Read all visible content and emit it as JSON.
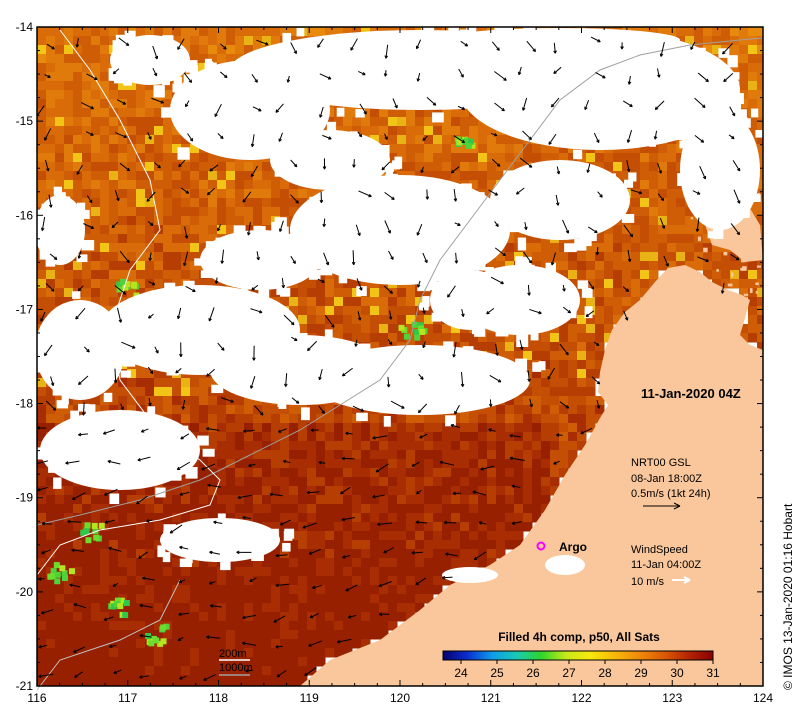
{
  "map": {
    "date_label": "11-Jan-2020 04Z",
    "credit": "© IMOS 13-Jan-2020 01:16 Hobart",
    "colors": {
      "land": "#f9c79b",
      "cloud": "#ffffff",
      "frame": "#000000",
      "argo": "#ff00ff",
      "depth_contour": "#a0a0a0",
      "shallow_contour": "#ffffff"
    },
    "longitude_ticks": [
      "116",
      "117",
      "118",
      "119",
      "120",
      "121",
      "122",
      "123",
      "124"
    ],
    "latitude_ticks": [
      "-14",
      "-15",
      "-16",
      "-17",
      "-18",
      "-19",
      "-20",
      "-21"
    ],
    "lon_range": [
      116,
      124
    ],
    "lat_range": [
      -14,
      -21
    ]
  },
  "current_legend": {
    "title": "NRT00 GSL",
    "time": "08-Jan 18:00Z",
    "scale": "0.5m/s (1kt 24h)"
  },
  "wind_legend": {
    "title": "WindSpeed",
    "time": "11-Jan 04:00Z",
    "scale": "10 m/s"
  },
  "argo": {
    "label": "Argo",
    "lon": 121.65,
    "lat": -19.5
  },
  "contours": {
    "label_200": "200m",
    "label_1000": "1000m"
  },
  "colorbar": {
    "title": "Filled 4h comp, p50, All Sats",
    "ticks": [
      "24",
      "25",
      "26",
      "27",
      "28",
      "29",
      "30",
      "31"
    ],
    "min": 23.5,
    "max": 31,
    "stops": [
      "#08006e",
      "#0a2fd0",
      "#0f9ce8",
      "#19c9b4",
      "#2ed62b",
      "#c5e81a",
      "#f8e80c",
      "#f7b80a",
      "#ef8a0a",
      "#dd5a06",
      "#b42503",
      "#8a0000"
    ]
  }
}
